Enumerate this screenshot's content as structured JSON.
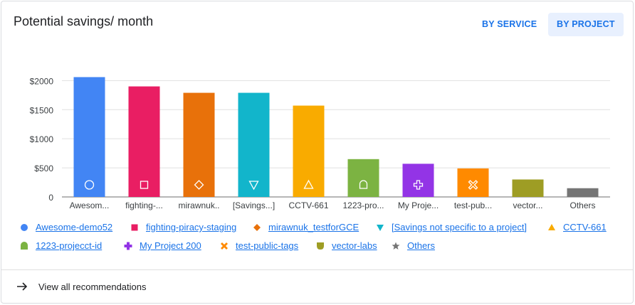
{
  "card": {
    "title": "Potential savings/ month",
    "buttons": {
      "by_service": "BY SERVICE",
      "by_project": "BY PROJECT"
    },
    "footer_link": "View all recommendations"
  },
  "chart_data": {
    "type": "bar",
    "categories": [
      "Awesom...",
      "fighting-...",
      "mirawnuk..",
      "[Savings...]",
      "CCTV-661",
      "1223-pro...",
      "My Proje...",
      "test-pub...",
      "vector...",
      "Others"
    ],
    "values": [
      2060,
      1900,
      1790,
      1790,
      1570,
      650,
      570,
      490,
      300,
      150
    ],
    "colors": [
      "#4285f4",
      "#e91e63",
      "#e8710a",
      "#12b5cb",
      "#f9ab00",
      "#7cb342",
      "#9334e6",
      "#ff8a00",
      "#9e9d24",
      "#757575"
    ],
    "markers": [
      "circle",
      "square",
      "diamond",
      "triangle-down",
      "triangle-up",
      "rounded-square",
      "cross",
      "x-cross",
      "shield",
      "star"
    ],
    "y_ticks": [
      "0",
      "$500",
      "$1000",
      "$1500",
      "$2000"
    ],
    "y_tick_values": [
      0,
      500,
      1000,
      1500,
      2000
    ],
    "ylim": [
      0,
      2200
    ],
    "grid": true,
    "legend": [
      {
        "label": "Awesome-demo52",
        "marker": "circle",
        "color": "#4285f4"
      },
      {
        "label": "fighting-piracy-staging",
        "marker": "square",
        "color": "#e91e63"
      },
      {
        "label": "mirawnuk_testforGCE",
        "marker": "diamond",
        "color": "#e8710a"
      },
      {
        "label": "[Savings not specific to a project]",
        "marker": "triangle-down",
        "color": "#12b5cb"
      },
      {
        "label": "CCTV-661",
        "marker": "triangle-up",
        "color": "#f9ab00"
      },
      {
        "label": "1223-projecct-id",
        "marker": "rounded-square",
        "color": "#7cb342"
      },
      {
        "label": "My Project 200",
        "marker": "cross",
        "color": "#9334e6"
      },
      {
        "label": "test-public-tags",
        "marker": "x-cross",
        "color": "#ff8a00"
      },
      {
        "label": "vector-labs",
        "marker": "shield",
        "color": "#9e9d24"
      },
      {
        "label": "Others",
        "marker": "star",
        "color": "#757575"
      }
    ],
    "legend_placement": "bottom"
  }
}
